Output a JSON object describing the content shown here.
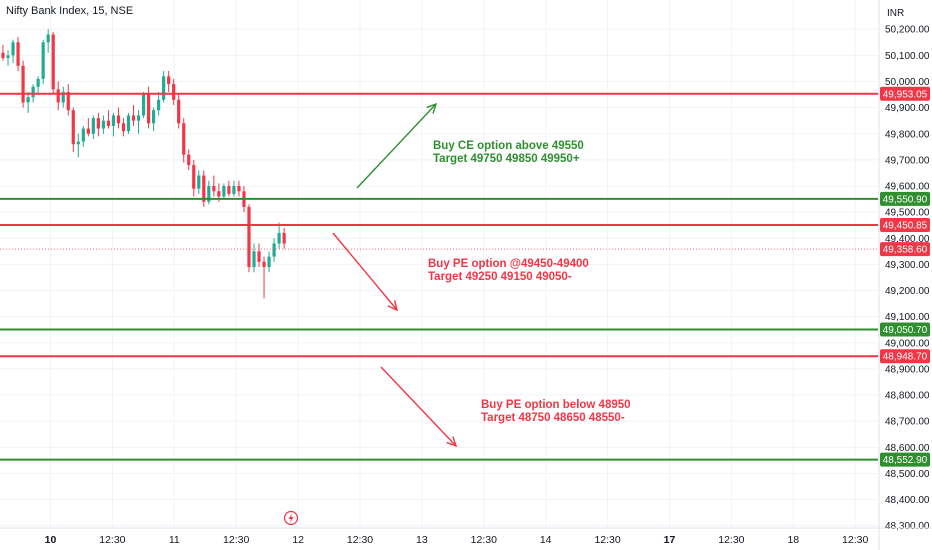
{
  "header": {
    "title": "Nifty Bank Index, 15, NSE",
    "currency": "INR"
  },
  "colors": {
    "up": "#22ab94",
    "down": "#f23645",
    "red_line": "#f23645",
    "green_line": "#2f8f2f",
    "grid": "#f0f3fa",
    "axis_text": "#131722"
  },
  "chart_data": {
    "type": "candlestick",
    "y_axis": {
      "ticks": [
        "50,200.00",
        "50,100.00",
        "50,000.00",
        "49,900.00",
        "49,800.00",
        "49,700.00",
        "49,600.00",
        "49,500.00",
        "49,400.00",
        "49,300.00",
        "49,200.00",
        "49,100.00",
        "49,000.00",
        "48,900.00",
        "48,800.00",
        "48,700.00",
        "48,600.00",
        "48,500.00",
        "48,400.00",
        "48,300.00"
      ],
      "tick_values": [
        50200,
        50100,
        50000,
        49900,
        49800,
        49700,
        49600,
        49500,
        49400,
        49300,
        49200,
        49100,
        49000,
        48900,
        48800,
        48700,
        48600,
        48500,
        48400,
        48300
      ],
      "range": [
        48290,
        50245
      ]
    },
    "x_axis": {
      "ticks": [
        {
          "label": "10",
          "bold": true
        },
        {
          "label": "12:30",
          "bold": false
        },
        {
          "label": "11",
          "bold": false
        },
        {
          "label": "12:30",
          "bold": false
        },
        {
          "label": "12",
          "bold": false
        },
        {
          "label": "12:30",
          "bold": false
        },
        {
          "label": "13",
          "bold": false
        },
        {
          "label": "12:30",
          "bold": false
        },
        {
          "label": "14",
          "bold": false
        },
        {
          "label": "12:30",
          "bold": false
        },
        {
          "label": "17",
          "bold": true
        },
        {
          "label": "12:30",
          "bold": false
        },
        {
          "label": "18",
          "bold": false
        },
        {
          "label": "12:30",
          "bold": false
        }
      ]
    },
    "levels": [
      {
        "value": 49953.05,
        "label": "49,953.05",
        "color": "red"
      },
      {
        "value": 49550.9,
        "label": "49,550.90",
        "color": "green"
      },
      {
        "value": 49450.85,
        "label": "49,450.85",
        "color": "red"
      },
      {
        "value": 49050.7,
        "label": "49,050.70",
        "color": "green"
      },
      {
        "value": 48948.7,
        "label": "48,948.70",
        "color": "red"
      },
      {
        "value": 48552.9,
        "label": "48,552.90",
        "color": "green"
      }
    ],
    "last_price": {
      "value": 49358.6,
      "label": "49,358.60"
    },
    "candles": [
      [
        50110,
        50140,
        50080,
        50090
      ],
      [
        50090,
        50120,
        50060,
        50100
      ],
      [
        50100,
        50160,
        50070,
        50150
      ],
      [
        50150,
        50170,
        50040,
        50060
      ],
      [
        50060,
        50080,
        49900,
        49920
      ],
      [
        49920,
        49960,
        49880,
        49940
      ],
      [
        49940,
        49990,
        49920,
        49980
      ],
      [
        49980,
        50020,
        49950,
        50010
      ],
      [
        50010,
        50160,
        49990,
        50150
      ],
      [
        50150,
        50200,
        50110,
        50180
      ],
      [
        50180,
        50190,
        49950,
        49970
      ],
      [
        49970,
        50000,
        49890,
        49920
      ],
      [
        49920,
        49980,
        49900,
        49960
      ],
      [
        49960,
        49990,
        49870,
        49890
      ],
      [
        49890,
        49900,
        49730,
        49760
      ],
      [
        49760,
        49800,
        49710,
        49770
      ],
      [
        49770,
        49830,
        49750,
        49820
      ],
      [
        49820,
        49860,
        49790,
        49800
      ],
      [
        49800,
        49870,
        49780,
        49860
      ],
      [
        49860,
        49880,
        49790,
        49820
      ],
      [
        49820,
        49870,
        49800,
        49850
      ],
      [
        49850,
        49890,
        49820,
        49830
      ],
      [
        49830,
        49880,
        49790,
        49870
      ],
      [
        49870,
        49900,
        49820,
        49840
      ],
      [
        49840,
        49860,
        49790,
        49810
      ],
      [
        49810,
        49880,
        49800,
        49870
      ],
      [
        49870,
        49910,
        49830,
        49850
      ],
      [
        49850,
        49890,
        49800,
        49870
      ],
      [
        49870,
        49960,
        49860,
        49950
      ],
      [
        49950,
        49980,
        49820,
        49840
      ],
      [
        49840,
        49900,
        49810,
        49890
      ],
      [
        49890,
        49960,
        49870,
        49930
      ],
      [
        49930,
        50040,
        49920,
        50020
      ],
      [
        50020,
        50040,
        49960,
        49990
      ],
      [
        49990,
        50010,
        49910,
        49930
      ],
      [
        49930,
        49950,
        49820,
        49840
      ],
      [
        49840,
        49860,
        49690,
        49720
      ],
      [
        49720,
        49740,
        49660,
        49680
      ],
      [
        49680,
        49700,
        49560,
        49590
      ],
      [
        49590,
        49660,
        49570,
        49640
      ],
      [
        49640,
        49660,
        49520,
        49540
      ],
      [
        49540,
        49620,
        49530,
        49600
      ],
      [
        49600,
        49640,
        49560,
        49580
      ],
      [
        49580,
        49610,
        49540,
        49560
      ],
      [
        49560,
        49610,
        49550,
        49600
      ],
      [
        49600,
        49620,
        49560,
        49570
      ],
      [
        49570,
        49620,
        49560,
        49600
      ],
      [
        49600,
        49620,
        49560,
        49580
      ],
      [
        49580,
        49600,
        49500,
        49520
      ],
      [
        49520,
        49530,
        49270,
        49290
      ],
      [
        49290,
        49380,
        49270,
        49350
      ],
      [
        49350,
        49380,
        49290,
        49310
      ],
      [
        49310,
        49330,
        49170,
        49290
      ],
      [
        49290,
        49350,
        49270,
        49330
      ],
      [
        49330,
        49400,
        49310,
        49380
      ],
      [
        49380,
        49460,
        49360,
        49420
      ],
      [
        49420,
        49440,
        49360,
        49380
      ]
    ]
  },
  "annotations": [
    {
      "line1": "Buy CE option above 49550",
      "line2": "Target 49750 49850 49950+",
      "color": "green"
    },
    {
      "line1": "Buy PE option @49450-49400",
      "line2": "Target 49250 49150 49050-",
      "color": "red"
    },
    {
      "line1": "Buy PE option below 48950",
      "line2": "Target 48750 48650 48550-",
      "color": "red"
    }
  ],
  "icons": {
    "event_marker": "lightning-icon"
  }
}
